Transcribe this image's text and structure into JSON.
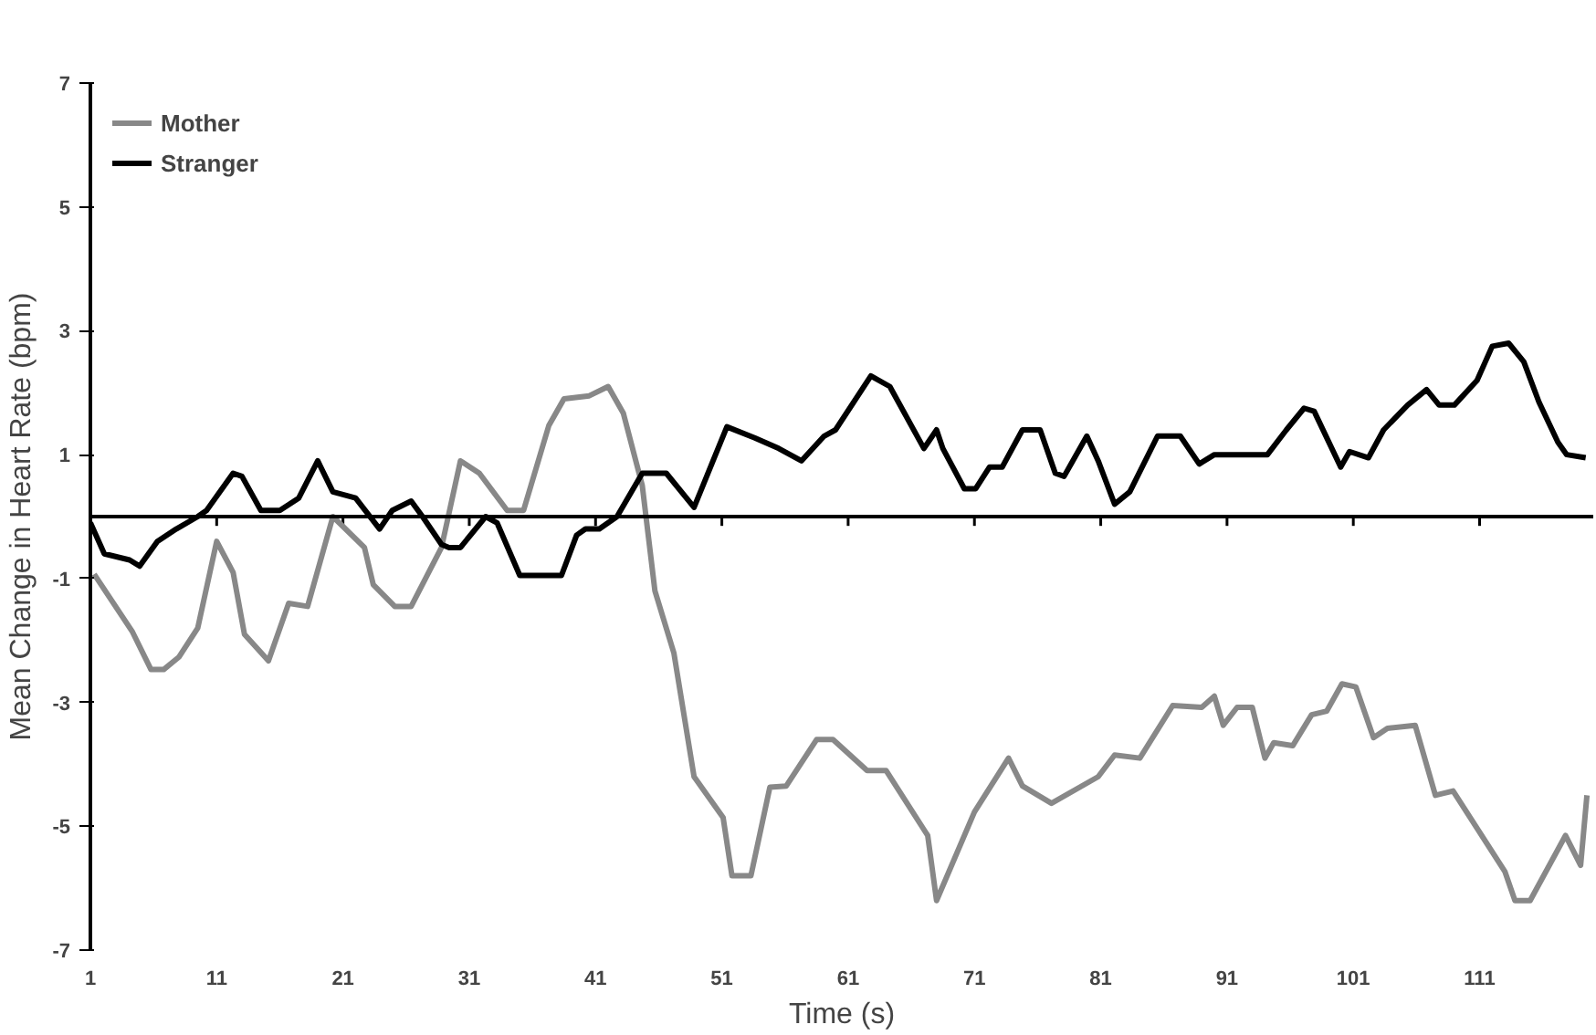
{
  "chart_data": {
    "type": "line",
    "xlabel": "Time (s)",
    "ylabel": "Mean Change in Heart Rate (bpm)",
    "xlim": [
      1,
      120
    ],
    "xticks": [
      1,
      11,
      21,
      31,
      41,
      51,
      61,
      71,
      81,
      91,
      101,
      111
    ],
    "ylim": [
      -7,
      7
    ],
    "yticks": [
      -7,
      -5,
      -3,
      -1,
      1,
      3,
      5,
      7
    ],
    "grid": false,
    "legend": "top left",
    "line_style": "solid",
    "marker": "none",
    "ref_lines": [
      {
        "axis": "y",
        "value": 0,
        "color": "#000000"
      }
    ],
    "series": [
      {
        "name": "Mother",
        "color": "#888888",
        "x": [
          1.3,
          4.3,
          5.8,
          6.8,
          8,
          9.5,
          11,
          12.3,
          13.2,
          15.1,
          16.7,
          18.2,
          20.2,
          22.7,
          23.4,
          25.1,
          26.4,
          28.8,
          30.3,
          31.8,
          34,
          35.3,
          37.3,
          38.5,
          40.5,
          42,
          43.2,
          44.7,
          45.7,
          47.2,
          48.8,
          51.1,
          51.8,
          53.3,
          54.8,
          56.1,
          58.5,
          59.8,
          62.5,
          64,
          67.3,
          68,
          71,
          73.7,
          74.8,
          77.1,
          80.8,
          82.1,
          84.1,
          86.7,
          89,
          90,
          90.7,
          91.8,
          93,
          94,
          94.7,
          96.2,
          97.7,
          98.9,
          100.1,
          101.2,
          102.6,
          103.7,
          105.9,
          107.5,
          108.9,
          113,
          113.8,
          115,
          117.8,
          119,
          119.5
        ],
        "values": [
          -0.93,
          -1.85,
          -2.47,
          -2.47,
          -2.27,
          -1.8,
          -0.4,
          -0.9,
          -1.9,
          -2.33,
          -1.4,
          -1.45,
          0,
          -0.5,
          -1.1,
          -1.45,
          -1.45,
          -0.5,
          0.9,
          0.7,
          0.1,
          0.1,
          1.47,
          1.9,
          1.95,
          2.1,
          1.67,
          0.5,
          -1.2,
          -2.2,
          -4.2,
          -4.86,
          -5.8,
          -5.8,
          -4.37,
          -4.35,
          -3.6,
          -3.6,
          -4.1,
          -4.1,
          -5.15,
          -6.2,
          -4.77,
          -3.9,
          -4.35,
          -4.63,
          -4.2,
          -3.85,
          -3.9,
          -3.05,
          -3.08,
          -2.9,
          -3.37,
          -3.08,
          -3.08,
          -3.9,
          -3.65,
          -3.7,
          -3.2,
          -3.14,
          -2.7,
          -2.75,
          -3.57,
          -3.42,
          -3.37,
          -4.5,
          -4.43,
          -5.73,
          -6.2,
          -6.2,
          -5.15,
          -5.63,
          -4.5
        ]
      },
      {
        "name": "Stranger",
        "color": "#000000",
        "x": [
          1,
          2.1,
          4.1,
          4.9,
          6.3,
          7.8,
          9.5,
          10.2,
          12.3,
          13,
          14.5,
          16,
          17.5,
          19,
          20.2,
          22,
          23.9,
          24.9,
          26.4,
          27.3,
          28.8,
          29.4,
          30.3,
          32.3,
          33.2,
          35,
          38.3,
          39.5,
          40.2,
          41.3,
          42.7,
          44.7,
          46.6,
          48.8,
          51.4,
          53.6,
          55.5,
          57.3,
          59.1,
          60,
          62.8,
          64.3,
          67,
          68,
          68.5,
          70.2,
          71.1,
          72.2,
          73.2,
          74.8,
          76.2,
          77.4,
          78.1,
          79.9,
          80.8,
          82.1,
          83.3,
          85.5,
          87.3,
          88.8,
          90,
          94.2,
          95.7,
          97.1,
          97.9,
          100,
          100.7,
          102.2,
          103.4,
          105.3,
          106.8,
          107.8,
          109,
          110.8,
          112,
          113.3,
          114.5,
          115.7,
          117.2,
          117.9,
          119.4
        ],
        "values": [
          -0.1,
          -0.6,
          -0.7,
          -0.8,
          -0.4,
          -0.2,
          0,
          0.1,
          0.7,
          0.65,
          0.1,
          0.1,
          0.3,
          0.9,
          0.4,
          0.3,
          -0.2,
          0.1,
          0.25,
          0,
          -0.45,
          -0.5,
          -0.5,
          0,
          -0.1,
          -0.95,
          -0.95,
          -0.3,
          -0.2,
          -0.2,
          0,
          0.7,
          0.7,
          0.15,
          1.45,
          1.27,
          1.1,
          0.9,
          1.3,
          1.4,
          2.27,
          2.1,
          1.1,
          1.4,
          1.1,
          0.45,
          0.45,
          0.8,
          0.8,
          1.4,
          1.4,
          0.7,
          0.65,
          1.3,
          0.9,
          0.2,
          0.4,
          1.3,
          1.3,
          0.85,
          1.0,
          1.0,
          1.4,
          1.75,
          1.7,
          0.8,
          1.05,
          0.95,
          1.4,
          1.8,
          2.05,
          1.8,
          1.8,
          2.2,
          2.75,
          2.8,
          2.5,
          1.85,
          1.2,
          1.0,
          0.95
        ]
      }
    ]
  }
}
